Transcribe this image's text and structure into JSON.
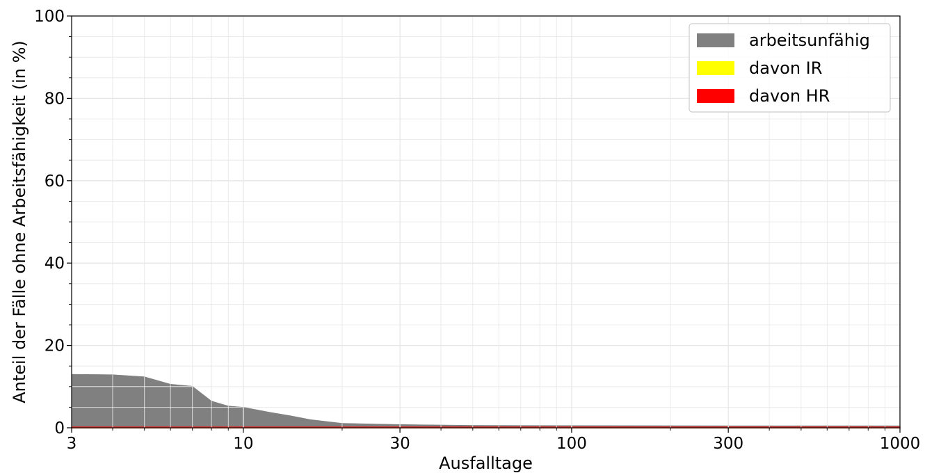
{
  "chart_data": {
    "type": "area",
    "title": "",
    "xlabel": "Ausfalltage",
    "ylabel": "Anteil der Fälle ohne Arbeitsfähigkeit (in %)",
    "xscale": "log",
    "xlim": [
      3,
      1000
    ],
    "ylim": [
      0,
      100
    ],
    "x_ticks": [
      3,
      10,
      30,
      100,
      300,
      1000
    ],
    "x_tick_labels": [
      "3",
      "10",
      "30",
      "100",
      "300",
      "1000"
    ],
    "y_ticks": [
      0,
      20,
      40,
      60,
      80,
      100
    ],
    "y_tick_labels": [
      "0",
      "20",
      "40",
      "60",
      "80",
      "100"
    ],
    "grid": true,
    "legend_position": "top-right",
    "series": [
      {
        "name": "arbeitsunfähig",
        "color": "#808080",
        "points": [
          [
            3,
            13.0
          ],
          [
            4,
            12.9
          ],
          [
            5,
            12.4
          ],
          [
            6,
            10.6
          ],
          [
            7,
            10.1
          ],
          [
            8,
            6.5
          ],
          [
            9,
            5.3
          ],
          [
            10,
            5.0
          ],
          [
            12,
            3.8
          ],
          [
            14,
            2.9
          ],
          [
            16,
            2.0
          ],
          [
            20,
            1.1
          ],
          [
            30,
            0.8
          ],
          [
            50,
            0.6
          ],
          [
            100,
            0.55
          ],
          [
            300,
            0.5
          ],
          [
            1000,
            0.5
          ]
        ]
      },
      {
        "name": "davon IR",
        "color": "#ffff00",
        "points": [
          [
            3,
            0.0
          ],
          [
            1000,
            0.0
          ]
        ]
      },
      {
        "name": "davon HR",
        "color": "#ff0000",
        "points": [
          [
            3,
            0.15
          ],
          [
            1000,
            0.15
          ]
        ]
      }
    ]
  }
}
